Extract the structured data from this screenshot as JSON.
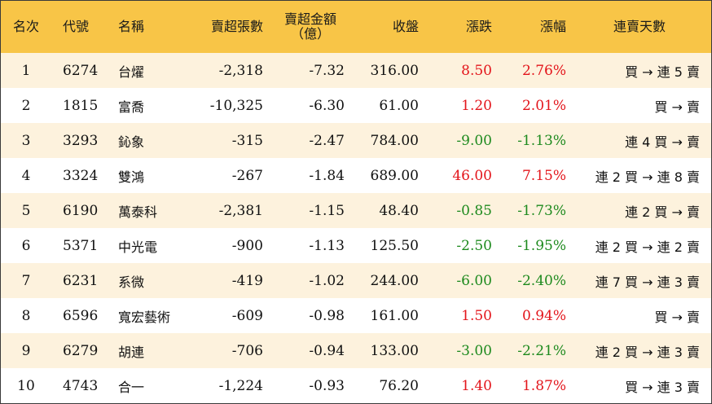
{
  "header": {
    "rank": "名次",
    "code": "代號",
    "name": "名稱",
    "sell_lots": "賣超張數",
    "sell_amount_line1": "賣超金額",
    "sell_amount_line2": "（億）",
    "close": "收盤",
    "change": "漲跌",
    "change_pct": "漲幅",
    "streak": "連賣天數"
  },
  "colors": {
    "header_bg": "#f8c547",
    "stripe_bg": "#fdf2dd",
    "up": "#e3151b",
    "down": "#1e8a1e"
  },
  "rows": [
    {
      "rank": "1",
      "code": "6274",
      "name": "台燿",
      "sell_lots": "-2,318",
      "sell_amount": "-7.32",
      "close": "316.00",
      "change": "8.50",
      "change_pct": "2.76%",
      "direction": "up",
      "streak": "買 → 連 5 賣"
    },
    {
      "rank": "2",
      "code": "1815",
      "name": "富喬",
      "sell_lots": "-10,325",
      "sell_amount": "-6.30",
      "close": "61.00",
      "change": "1.20",
      "change_pct": "2.01%",
      "direction": "up",
      "streak": "買 → 賣"
    },
    {
      "rank": "3",
      "code": "3293",
      "name": "鈊象",
      "sell_lots": "-315",
      "sell_amount": "-2.47",
      "close": "784.00",
      "change": "-9.00",
      "change_pct": "-1.13%",
      "direction": "down",
      "streak": "連 4 買 → 賣"
    },
    {
      "rank": "4",
      "code": "3324",
      "name": "雙鴻",
      "sell_lots": "-267",
      "sell_amount": "-1.84",
      "close": "689.00",
      "change": "46.00",
      "change_pct": "7.15%",
      "direction": "up",
      "streak": "連 2 買 → 連 8 賣"
    },
    {
      "rank": "5",
      "code": "6190",
      "name": "萬泰科",
      "sell_lots": "-2,381",
      "sell_amount": "-1.15",
      "close": "48.40",
      "change": "-0.85",
      "change_pct": "-1.73%",
      "direction": "down",
      "streak": "連 2 買 → 賣"
    },
    {
      "rank": "6",
      "code": "5371",
      "name": "中光電",
      "sell_lots": "-900",
      "sell_amount": "-1.13",
      "close": "125.50",
      "change": "-2.50",
      "change_pct": "-1.95%",
      "direction": "down",
      "streak": "連 2 買 → 連 2 賣"
    },
    {
      "rank": "7",
      "code": "6231",
      "name": "系微",
      "sell_lots": "-419",
      "sell_amount": "-1.02",
      "close": "244.00",
      "change": "-6.00",
      "change_pct": "-2.40%",
      "direction": "down",
      "streak": "連 7 買 → 連 3 賣"
    },
    {
      "rank": "8",
      "code": "6596",
      "name": "寬宏藝術",
      "sell_lots": "-609",
      "sell_amount": "-0.98",
      "close": "161.00",
      "change": "1.50",
      "change_pct": "0.94%",
      "direction": "up",
      "streak": "買 → 賣"
    },
    {
      "rank": "9",
      "code": "6279",
      "name": "胡連",
      "sell_lots": "-706",
      "sell_amount": "-0.94",
      "close": "133.00",
      "change": "-3.00",
      "change_pct": "-2.21%",
      "direction": "down",
      "streak": "連 2 買 → 連 3 賣"
    },
    {
      "rank": "10",
      "code": "4743",
      "name": "合一",
      "sell_lots": "-1,224",
      "sell_amount": "-0.93",
      "close": "76.20",
      "change": "1.40",
      "change_pct": "1.87%",
      "direction": "up",
      "streak": "買 → 連 3 賣"
    }
  ]
}
